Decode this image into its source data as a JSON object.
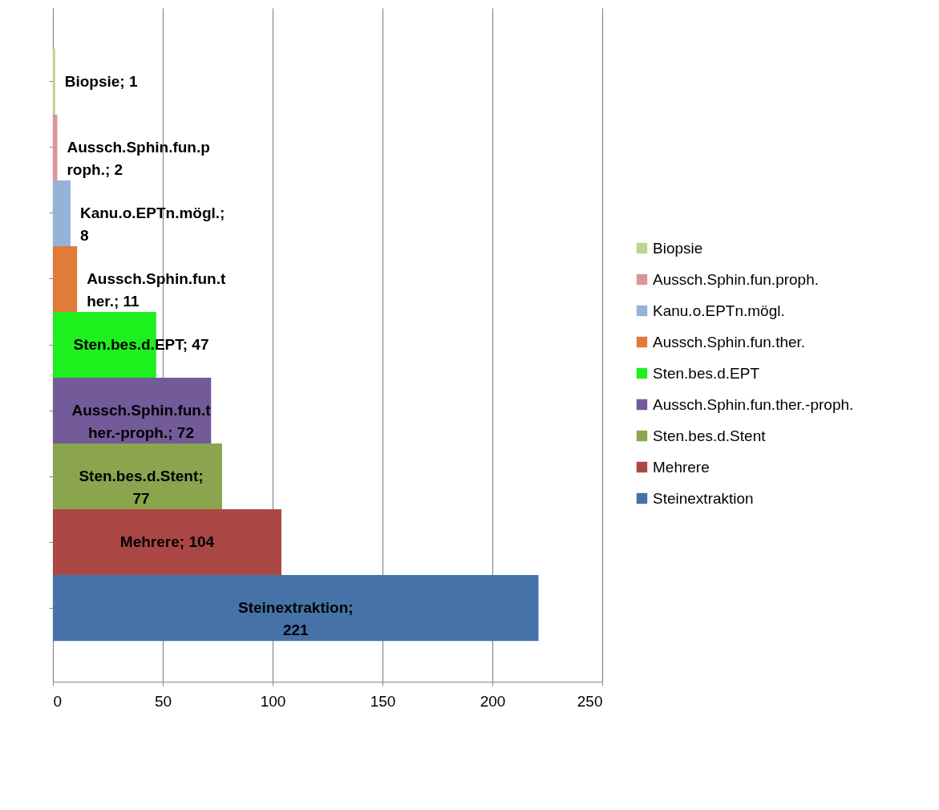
{
  "chart_data": {
    "type": "bar",
    "orientation": "horizontal",
    "categories": [
      null,
      null,
      null,
      null,
      null,
      null,
      null,
      null,
      null
    ],
    "series": [
      {
        "name": "Biopsie",
        "color": "#b9d58f",
        "values": [
          1,
          null,
          null,
          null,
          null,
          null,
          null,
          null,
          null
        ],
        "value_labels": [
          "Biopsie; 1",
          null,
          null,
          null,
          null,
          null,
          null,
          null,
          null
        ]
      },
      {
        "name": "Aussch.Sphin.fun.proph.",
        "color": "#d99694",
        "values": [
          null,
          2,
          null,
          null,
          null,
          null,
          null,
          null,
          null
        ],
        "value_labels": [
          null,
          "Aussch.Sphin.fun.proph.; 2",
          null,
          null,
          null,
          null,
          null,
          null,
          null
        ]
      },
      {
        "name": "Kanu.o.EPTn.mögl.",
        "color": "#95b3d7",
        "values": [
          null,
          null,
          8,
          null,
          null,
          null,
          null,
          null,
          null
        ],
        "value_labels": [
          null,
          null,
          "Kanu.o.EPTn.mögl.; 8",
          null,
          null,
          null,
          null,
          null,
          null
        ]
      },
      {
        "name": "Aussch.Sphin.fun.ther.",
        "color": "#e07b39",
        "values": [
          null,
          null,
          null,
          11,
          null,
          null,
          null,
          null,
          null
        ],
        "value_labels": [
          null,
          null,
          null,
          "Aussch.Sphin.fun.ther.; 11",
          null,
          null,
          null,
          null,
          null
        ]
      },
      {
        "name": "Sten.bes.d.EPT",
        "color": "#1ef01e",
        "values": [
          null,
          null,
          null,
          null,
          47,
          null,
          null,
          null,
          null
        ],
        "value_labels": [
          null,
          null,
          null,
          null,
          "Sten.bes.d.EPT; 47",
          null,
          null,
          null,
          null
        ]
      },
      {
        "name": "Aussch.Sphin.fun.ther.-proph.",
        "color": "#735a99",
        "values": [
          null,
          null,
          null,
          null,
          null,
          72,
          null,
          null,
          null
        ],
        "value_labels": [
          null,
          null,
          null,
          null,
          null,
          "Aussch.Sphin.fun.ther.-proph.; 72",
          null,
          null,
          null
        ]
      },
      {
        "name": "Sten.bes.d.Stent",
        "color": "#8aa54d",
        "values": [
          null,
          null,
          null,
          null,
          null,
          null,
          77,
          null,
          null
        ],
        "value_labels": [
          null,
          null,
          null,
          null,
          null,
          null,
          "Sten.bes.d.Stent; 77",
          null,
          null
        ]
      },
      {
        "name": "Mehrere",
        "color": "#aa4644",
        "values": [
          null,
          null,
          null,
          null,
          null,
          null,
          null,
          104,
          null
        ],
        "value_labels": [
          null,
          null,
          null,
          null,
          null,
          null,
          null,
          "Mehrere; 104",
          null
        ]
      },
      {
        "name": "Steinextraktion",
        "color": "#4672a8",
        "values": [
          null,
          null,
          null,
          null,
          null,
          null,
          null,
          null,
          221
        ],
        "value_labels": [
          null,
          null,
          null,
          null,
          null,
          null,
          null,
          null,
          "Steinextraktion; 221"
        ]
      }
    ],
    "xlim": [
      0,
      250
    ],
    "xticks": [
      0,
      50,
      100,
      150,
      200,
      250
    ],
    "grid": "x",
    "legend": "right",
    "tick_labels": "x"
  }
}
